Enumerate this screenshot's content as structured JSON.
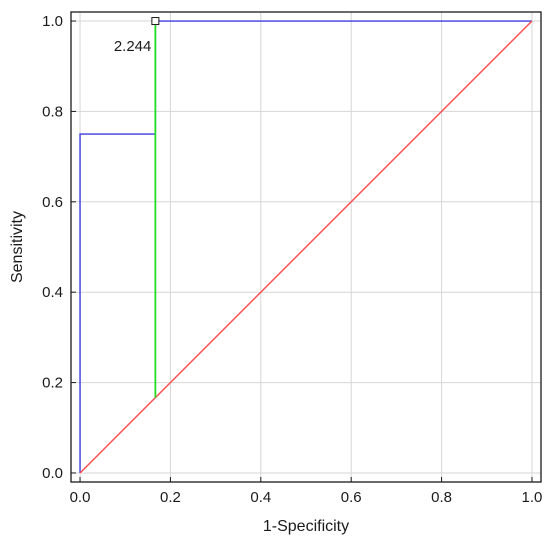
{
  "chart_data": {
    "type": "line",
    "title": "",
    "xlabel": "1-Specificity",
    "ylabel": "Sensitivity",
    "xlim": [
      -0.02,
      1.02
    ],
    "ylim": [
      -0.02,
      1.02
    ],
    "x_ticks": [
      "0.0",
      "0.2",
      "0.4",
      "0.6",
      "0.8",
      "1.0"
    ],
    "y_ticks": [
      "0.0",
      "0.2",
      "0.4",
      "0.6",
      "0.8",
      "1.0"
    ],
    "grid": true,
    "legend": "none",
    "series": [
      {
        "color": "#3b3bdc",
        "x": [
          0.0,
          0.0,
          0.1667,
          0.1667,
          1.0
        ],
        "y": [
          0.0,
          0.75,
          0.75,
          1.0,
          1.0
        ]
      },
      {
        "color": "#ff4a4a",
        "x": [
          0.0,
          1.0
        ],
        "y": [
          0.0,
          1.0
        ]
      },
      {
        "color": "#22dd22",
        "x": [
          0.1667,
          0.1667
        ],
        "y": [
          0.1667,
          1.0
        ]
      }
    ],
    "annotations": [
      {
        "text": "2.244",
        "x": 0.1667,
        "y": 1.0
      }
    ]
  }
}
